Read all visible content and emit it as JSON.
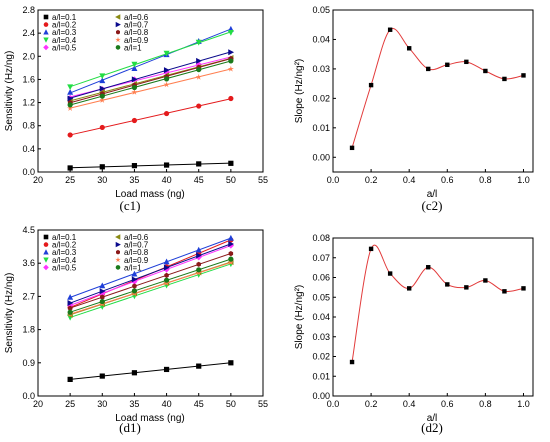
{
  "chart_data": [
    {
      "id": "c1",
      "type": "scatter",
      "panel_label": "(c1)",
      "xlabel": "Load mass (ng)",
      "ylabel": "Sensitivity (Hz/ng)",
      "xlim": [
        20,
        55
      ],
      "ylim": [
        0.0,
        2.8
      ],
      "xticks": [
        20,
        25,
        30,
        35,
        40,
        45,
        50,
        55
      ],
      "yticks": [
        0.0,
        0.4,
        0.8,
        1.2,
        1.6,
        2.0,
        2.4,
        2.8
      ],
      "ytick_labels": [
        "0.0",
        "0.4",
        "0.8",
        "1.2",
        "1.6",
        "2.0",
        "2.4",
        "2.8"
      ],
      "x": [
        25,
        30,
        35,
        40,
        45,
        50
      ],
      "legend_position": "top-left",
      "series": [
        {
          "name": "a/l=0.1",
          "color": "#000000",
          "marker": "square",
          "values": [
            0.07,
            0.09,
            0.11,
            0.12,
            0.14,
            0.15
          ]
        },
        {
          "name": "a/l=0.2",
          "color": "#e41a1c",
          "marker": "circle",
          "values": [
            0.64,
            0.77,
            0.89,
            1.01,
            1.14,
            1.27
          ]
        },
        {
          "name": "a/l=0.3",
          "color": "#1f3fd8",
          "marker": "triangle-up",
          "values": [
            1.38,
            1.58,
            1.79,
            2.03,
            2.26,
            2.47
          ]
        },
        {
          "name": "a/l=0.4",
          "color": "#22dd44",
          "marker": "triangle-down",
          "values": [
            1.47,
            1.66,
            1.86,
            2.05,
            2.24,
            2.41
          ]
        },
        {
          "name": "a/l=0.5",
          "color": "#ff33ff",
          "marker": "diamond",
          "values": [
            1.28,
            1.43,
            1.6,
            1.73,
            1.86,
            1.96
          ]
        },
        {
          "name": "a/l=0.6",
          "color": "#8a8a14",
          "marker": "triangle-left",
          "values": [
            1.23,
            1.38,
            1.52,
            1.67,
            1.81,
            1.97
          ]
        },
        {
          "name": "a/l=0.7",
          "color": "#0a0a8c",
          "marker": "triangle-right",
          "values": [
            1.27,
            1.44,
            1.6,
            1.76,
            1.92,
            2.07
          ]
        },
        {
          "name": "a/l=0.8",
          "color": "#8b1a1a",
          "marker": "hexagon",
          "values": [
            1.2,
            1.35,
            1.5,
            1.65,
            1.81,
            1.96
          ]
        },
        {
          "name": "a/l=0.9",
          "color": "#ff7f50",
          "marker": "star",
          "values": [
            1.1,
            1.24,
            1.38,
            1.51,
            1.64,
            1.78
          ]
        },
        {
          "name": "a/l=1",
          "color": "#1a7a1a",
          "marker": "circle",
          "values": [
            1.16,
            1.31,
            1.46,
            1.61,
            1.77,
            1.92
          ]
        }
      ]
    },
    {
      "id": "c2",
      "type": "scatter",
      "panel_label": "(c2)",
      "xlabel": "a/l",
      "ylabel": "Slope (Hz/ng²)",
      "xlim": [
        0.0,
        1.05
      ],
      "ylim": [
        -0.005,
        0.05
      ],
      "xticks": [
        0.0,
        0.2,
        0.4,
        0.6,
        0.8,
        1.0
      ],
      "xtick_labels": [
        "0.0",
        "0.2",
        "0.4",
        "0.6",
        "0.8",
        "1.0"
      ],
      "yticks": [
        0.0,
        0.01,
        0.02,
        0.03,
        0.04,
        0.05
      ],
      "ytick_labels": [
        "0.00",
        "0.01",
        "0.02",
        "0.03",
        "0.04",
        "0.05"
      ],
      "x": [
        0.1,
        0.2,
        0.3,
        0.4,
        0.5,
        0.6,
        0.7,
        0.8,
        0.9,
        1.0
      ],
      "values": [
        0.0032,
        0.0245,
        0.0433,
        0.037,
        0.03,
        0.0314,
        0.0324,
        0.0293,
        0.0266,
        0.0278
      ],
      "marker_color": "#000000",
      "curve_color": "#e23b3b"
    },
    {
      "id": "d1",
      "type": "scatter",
      "panel_label": "(d1)",
      "xlabel": "Load mass (ng)",
      "ylabel": "Sensitivity (Hz/ng)",
      "xlim": [
        20,
        55
      ],
      "ylim": [
        0.0,
        4.5
      ],
      "xticks": [
        20,
        25,
        30,
        35,
        40,
        45,
        50,
        55
      ],
      "yticks": [
        0.0,
        0.9,
        1.8,
        2.7,
        3.6,
        4.5
      ],
      "ytick_labels": [
        "0.0",
        "0.9",
        "1.8",
        "2.7",
        "3.6",
        "4.5"
      ],
      "x": [
        25,
        30,
        35,
        40,
        45,
        50
      ],
      "legend_position": "top-left",
      "series": [
        {
          "name": "a/l=0.1",
          "color": "#000000",
          "marker": "square",
          "values": [
            0.45,
            0.54,
            0.63,
            0.72,
            0.81,
            0.9
          ]
        },
        {
          "name": "a/l=0.2",
          "color": "#e41a1c",
          "marker": "circle",
          "values": [
            2.4,
            2.77,
            3.13,
            3.5,
            3.87,
            4.23
          ]
        },
        {
          "name": "a/l=0.3",
          "color": "#1f3fd8",
          "marker": "triangle-up",
          "values": [
            2.68,
            2.99,
            3.31,
            3.64,
            3.96,
            4.28
          ]
        },
        {
          "name": "a/l=0.4",
          "color": "#22dd44",
          "marker": "triangle-down",
          "values": [
            2.13,
            2.42,
            2.71,
            3.0,
            3.29,
            3.58
          ]
        },
        {
          "name": "a/l=0.5",
          "color": "#ff33ff",
          "marker": "diamond",
          "values": [
            2.46,
            2.78,
            3.1,
            3.43,
            3.76,
            4.08
          ]
        },
        {
          "name": "a/l=0.6",
          "color": "#8a8a14",
          "marker": "triangle-left",
          "values": [
            2.2,
            2.49,
            2.78,
            3.06,
            3.35,
            3.63
          ]
        },
        {
          "name": "a/l=0.7",
          "color": "#0a0a8c",
          "marker": "triangle-right",
          "values": [
            2.52,
            2.84,
            3.16,
            3.48,
            3.81,
            4.12
          ]
        },
        {
          "name": "a/l=0.8",
          "color": "#8b1a1a",
          "marker": "hexagon",
          "values": [
            2.38,
            2.68,
            2.98,
            3.27,
            3.57,
            3.86
          ]
        },
        {
          "name": "a/l=0.9",
          "color": "#ff7f50",
          "marker": "star",
          "values": [
            2.22,
            2.5,
            2.78,
            3.06,
            3.34,
            3.62
          ]
        },
        {
          "name": "a/l=1",
          "color": "#1a7a1a",
          "marker": "circle",
          "values": [
            2.27,
            2.56,
            2.85,
            3.14,
            3.42,
            3.71
          ]
        }
      ]
    },
    {
      "id": "d2",
      "type": "scatter",
      "panel_label": "(d2)",
      "xlabel": "a/l",
      "ylabel": "Slope (Hz/ng²)",
      "xlim": [
        0.0,
        1.05
      ],
      "ylim": [
        0.0,
        0.08
      ],
      "xticks": [
        0.0,
        0.2,
        0.4,
        0.6,
        0.8,
        1.0
      ],
      "xtick_labels": [
        "0.0",
        "0.2",
        "0.4",
        "0.6",
        "0.8",
        "1.0"
      ],
      "yticks": [
        0.0,
        0.01,
        0.02,
        0.03,
        0.04,
        0.05,
        0.06,
        0.07,
        0.08
      ],
      "ytick_labels": [
        "0.00",
        "0.01",
        "0.02",
        "0.03",
        "0.04",
        "0.05",
        "0.06",
        "0.07",
        "0.08"
      ],
      "x": [
        0.1,
        0.2,
        0.3,
        0.4,
        0.5,
        0.6,
        0.7,
        0.8,
        0.9,
        1.0
      ],
      "values": [
        0.0172,
        0.0745,
        0.062,
        0.0545,
        0.0652,
        0.0565,
        0.055,
        0.0585,
        0.053,
        0.0545
      ],
      "marker_color": "#000000",
      "curve_color": "#e23b3b"
    }
  ]
}
